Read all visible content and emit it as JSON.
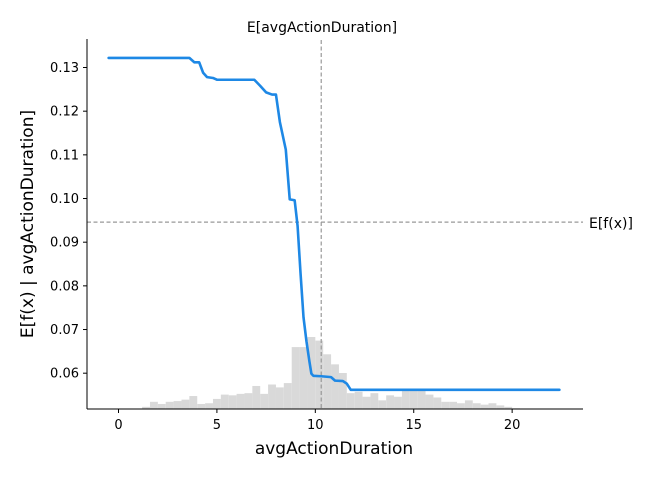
{
  "chart_data": {
    "type": "line",
    "title": "",
    "xlabel": "avgActionDuration",
    "ylabel": "E[f(x) | avgActionDuration]",
    "xlim": [
      -1.6,
      23.6
    ],
    "ylim": [
      0.0518,
      0.1363
    ],
    "x_ticks": [
      0,
      5,
      10,
      15,
      20
    ],
    "x_tick_labels": [
      "0",
      "5",
      "10",
      "15",
      "20"
    ],
    "y_ticks": [
      0.06,
      0.07,
      0.08,
      0.09,
      0.1,
      0.11,
      0.12,
      0.13
    ],
    "y_tick_labels": [
      "0.06",
      "0.07",
      "0.08",
      "0.09",
      "0.10",
      "0.11",
      "0.12",
      "0.13"
    ],
    "grid": false,
    "series": [
      {
        "color": "#1e88e5",
        "x": [
          -0.5,
          1.0,
          2.0,
          3.0,
          3.6,
          3.85,
          4.1,
          4.3,
          4.5,
          4.8,
          5.0,
          5.3,
          6.0,
          6.5,
          6.9,
          7.2,
          7.5,
          7.8,
          8.0,
          8.2,
          8.5,
          8.7,
          8.95,
          9.1,
          9.25,
          9.4,
          9.55,
          9.7,
          9.8,
          9.9,
          10.3,
          10.8,
          11.0,
          11.4,
          11.6,
          11.8,
          13.0,
          15.0,
          18.0,
          20.0,
          22.4
        ],
        "y": [
          0.1322,
          0.1322,
          0.1322,
          0.1322,
          0.1322,
          0.1312,
          0.1312,
          0.1288,
          0.1278,
          0.1276,
          0.1272,
          0.1272,
          0.1272,
          0.1272,
          0.1272,
          0.1258,
          0.1243,
          0.1238,
          0.1238,
          0.1175,
          0.1112,
          0.0998,
          0.0996,
          0.0937,
          0.0828,
          0.0728,
          0.0673,
          0.0627,
          0.0599,
          0.0594,
          0.0593,
          0.0591,
          0.0583,
          0.0582,
          0.0576,
          0.0562,
          0.0562,
          0.0562,
          0.0562,
          0.0562,
          0.0562
        ]
      }
    ],
    "reference_lines": {
      "vertical_x": 10.3,
      "horizontal_y": 0.0946,
      "vertical_label": "E[avgActionDuration]",
      "horizontal_label": "E[f(x)]",
      "color": "#999999"
    },
    "histogram": {
      "color": "#d9d9d9",
      "bin_width": 0.4,
      "bin_starts": [
        1.2,
        1.6,
        2.0,
        2.4,
        2.8,
        3.2,
        3.6,
        4.0,
        4.4,
        4.8,
        5.2,
        5.6,
        6.0,
        6.4,
        6.8,
        7.2,
        7.6,
        8.0,
        8.4,
        8.8,
        9.2,
        9.6,
        10.0,
        10.4,
        10.8,
        11.2,
        11.6,
        12.0,
        12.4,
        12.8,
        13.2,
        13.6,
        14.0,
        14.4,
        14.8,
        15.2,
        15.6,
        16.0,
        16.4,
        16.8,
        17.2,
        17.6,
        18.0,
        18.4,
        18.8,
        19.2,
        19.6,
        20.0
      ],
      "weights": [
        0.03,
        0.1,
        0.07,
        0.1,
        0.11,
        0.13,
        0.18,
        0.07,
        0.08,
        0.14,
        0.2,
        0.19,
        0.21,
        0.22,
        0.32,
        0.21,
        0.34,
        0.3,
        0.36,
        0.86,
        0.86,
        1.0,
        0.95,
        0.76,
        0.62,
        0.5,
        0.22,
        0.24,
        0.17,
        0.22,
        0.12,
        0.19,
        0.17,
        0.25,
        0.25,
        0.25,
        0.2,
        0.16,
        0.1,
        0.1,
        0.08,
        0.12,
        0.08,
        0.06,
        0.08,
        0.05,
        0.03,
        0.01
      ]
    }
  }
}
